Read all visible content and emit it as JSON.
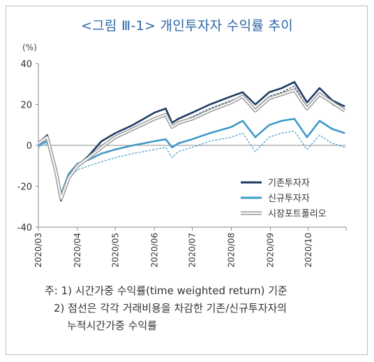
{
  "title": "<그림 Ⅲ-1> 개인투자자 수익률 추이",
  "unit_label": "(%)",
  "chart_data": {
    "type": "line",
    "title": "<그림 Ⅲ-1> 개인투자자 수익률 추이",
    "ylabel": "(%)",
    "ylim": [
      -40,
      40
    ],
    "yticks": [
      "40",
      "20",
      "0",
      "-20",
      "-40"
    ],
    "x_tick_labels": [
      "2020/03",
      "2020/04",
      "2020/05",
      "2020/06",
      "2020/07",
      "2020/08",
      "2020/09",
      "2020/10"
    ],
    "x": [
      "2020-03-01",
      "2020-03-08",
      "2020-03-15",
      "2020-03-19",
      "2020-03-25",
      "2020-04-01",
      "2020-04-10",
      "2020-04-20",
      "2020-05-01",
      "2020-05-15",
      "2020-06-01",
      "2020-06-10",
      "2020-06-15",
      "2020-06-20",
      "2020-07-01",
      "2020-07-15",
      "2020-08-01",
      "2020-08-10",
      "2020-08-20",
      "2020-08-31",
      "2020-09-10",
      "2020-09-20",
      "2020-09-30",
      "2020-10-10",
      "2020-10-20",
      "2020-10-30"
    ],
    "series": [
      {
        "name": "기존투자자",
        "color": "#1f3b63",
        "style": "solid",
        "values": [
          1,
          5,
          -12,
          -27,
          -16,
          -10,
          -5,
          2,
          6,
          10,
          16,
          18,
          11,
          13,
          16,
          20,
          24,
          26,
          20,
          26,
          28,
          31,
          21,
          28,
          22,
          19
        ]
      },
      {
        "name": "",
        "color": "#1f3b63",
        "style": "dashed",
        "values": [
          0,
          4,
          -13,
          -26,
          -17,
          -11,
          -6,
          0,
          4,
          8,
          13,
          15,
          9,
          11,
          14,
          18,
          22,
          24,
          18,
          24,
          26,
          29,
          19,
          26,
          20,
          17
        ]
      },
      {
        "name": "신규투자자",
        "color": "#3e9ac9",
        "style": "solid",
        "values": [
          0,
          2,
          -12,
          -24,
          -14,
          -9,
          -7,
          -4,
          -2,
          0,
          2,
          3,
          -1,
          1,
          3,
          6,
          9,
          12,
          4,
          10,
          12,
          13,
          4,
          12,
          8,
          6
        ]
      },
      {
        "name": "",
        "color": "#3e9ac9",
        "style": "dashed",
        "values": [
          -1,
          1,
          -14,
          -26,
          -16,
          -12,
          -10,
          -8,
          -6,
          -4,
          -2,
          -1,
          -6,
          -3,
          -1,
          2,
          4,
          6,
          -3,
          4,
          6,
          7,
          -2,
          5,
          1,
          -1
        ]
      },
      {
        "name": "시장포트폴리오",
        "color": "#9a9a9a",
        "style": "double",
        "values": [
          1,
          4,
          -13,
          -26,
          -16,
          -10,
          -6,
          -1,
          4,
          8,
          13,
          15,
          9,
          11,
          13,
          17,
          21,
          24,
          17,
          23,
          25,
          27,
          18,
          25,
          21,
          17
        ]
      }
    ],
    "legend": "lower-right",
    "grid": false
  },
  "notes": [
    "주: 1) 시간가중 수익률(time weighted return) 기준",
    "2) 점선은 각각 거래비용을 차감한 기존/신규투자자의",
    "누적시간가중 수익률"
  ]
}
